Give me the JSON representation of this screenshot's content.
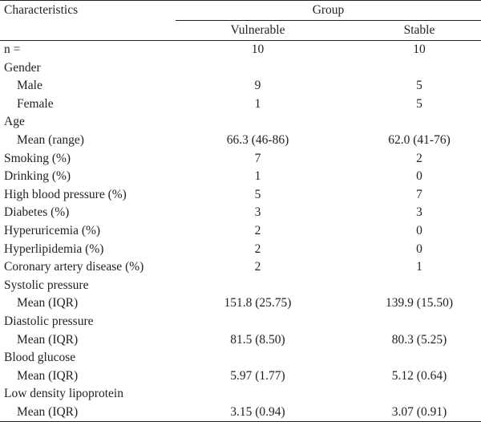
{
  "table": {
    "header": {
      "characteristics": "Characteristics",
      "group": "Group",
      "vulnerable": "Vulnerable",
      "stable": "Stable"
    },
    "rows": [
      {
        "label": "n =",
        "indent": false,
        "vulnerable": "10",
        "stable": "10"
      },
      {
        "label": "Gender",
        "indent": false,
        "vulnerable": "",
        "stable": ""
      },
      {
        "label": "Male",
        "indent": true,
        "vulnerable": "9",
        "stable": "5"
      },
      {
        "label": "Female",
        "indent": true,
        "vulnerable": "1",
        "stable": "5"
      },
      {
        "label": "Age",
        "indent": false,
        "vulnerable": "",
        "stable": ""
      },
      {
        "label": "Mean (range)",
        "indent": true,
        "vulnerable": "66.3 (46-86)",
        "stable": "62.0 (41-76)"
      },
      {
        "label": "Smoking (%)",
        "indent": false,
        "vulnerable": "7",
        "stable": "2"
      },
      {
        "label": "Drinking (%)",
        "indent": false,
        "vulnerable": "1",
        "stable": "0"
      },
      {
        "label": "High blood pressure (%)",
        "indent": false,
        "vulnerable": "5",
        "stable": "7"
      },
      {
        "label": "Diabetes (%)",
        "indent": false,
        "vulnerable": "3",
        "stable": "3"
      },
      {
        "label": "Hyperuricemia (%)",
        "indent": false,
        "vulnerable": "2",
        "stable": "0"
      },
      {
        "label": "Hyperlipidemia (%)",
        "indent": false,
        "vulnerable": "2",
        "stable": "0"
      },
      {
        "label": "Coronary artery disease (%)",
        "indent": false,
        "vulnerable": "2",
        "stable": "1"
      },
      {
        "label": "Systolic pressure",
        "indent": false,
        "vulnerable": "",
        "stable": ""
      },
      {
        "label": "Mean (IQR)",
        "indent": true,
        "vulnerable": "151.8 (25.75)",
        "stable": "139.9 (15.50)"
      },
      {
        "label": "Diastolic pressure",
        "indent": false,
        "vulnerable": "",
        "stable": ""
      },
      {
        "label": "Mean (IQR)",
        "indent": true,
        "vulnerable": "81.5 (8.50)",
        "stable": "80.3 (5.25)"
      },
      {
        "label": "Blood glucose",
        "indent": false,
        "vulnerable": "",
        "stable": ""
      },
      {
        "label": "Mean (IQR)",
        "indent": true,
        "vulnerable": "5.97 (1.77)",
        "stable": "5.12 (0.64)"
      },
      {
        "label": "Low density lipoprotein",
        "indent": false,
        "vulnerable": "",
        "stable": ""
      },
      {
        "label": "Mean (IQR)",
        "indent": true,
        "vulnerable": "3.15 (0.94)",
        "stable": "3.07 (0.91)"
      }
    ]
  }
}
